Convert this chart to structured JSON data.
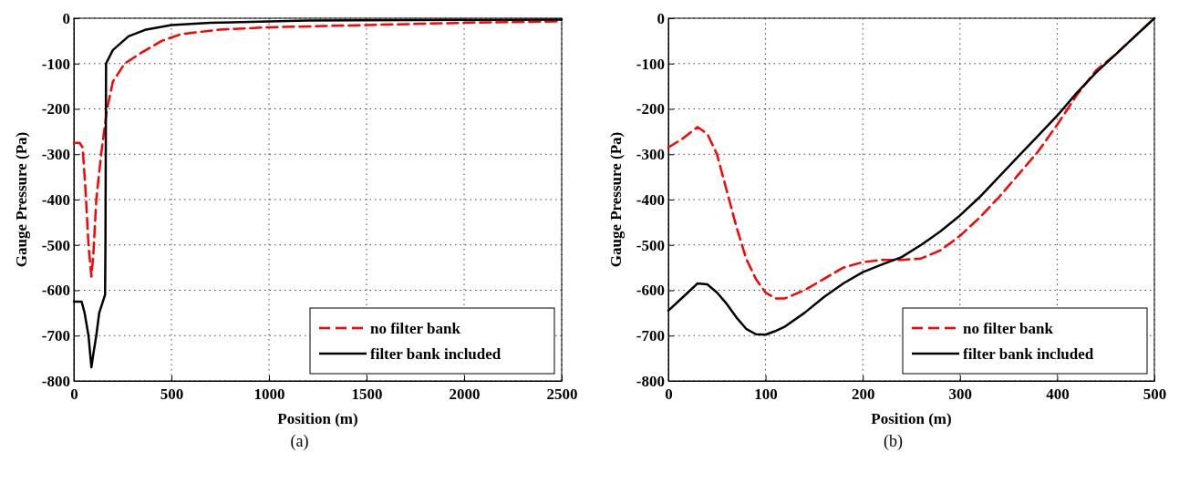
{
  "chart_data": [
    {
      "type": "line",
      "xlabel": "Position (m)",
      "ylabel": "Gauge Pressure (Pa)",
      "xlim": [
        0,
        2500
      ],
      "ylim": [
        -800,
        0
      ],
      "xticks": [
        0,
        500,
        1000,
        1500,
        2000,
        2500
      ],
      "yticks": [
        -800,
        -700,
        -600,
        -500,
        -400,
        -300,
        -200,
        -100,
        0
      ],
      "grid": true,
      "legend": "bottom right",
      "annotations": [
        "(a)"
      ],
      "series": [
        {
          "name": "no filter bank",
          "color": "#ff0000",
          "line_style": "dashed",
          "x": [
            0,
            30,
            45,
            60,
            75,
            90,
            100,
            115,
            140,
            170,
            200,
            260,
            350,
            450,
            550,
            750,
            1000,
            1500,
            2000,
            2500
          ],
          "values": [
            -275,
            -275,
            -285,
            -380,
            -500,
            -570,
            -520,
            -400,
            -300,
            -200,
            -140,
            -100,
            -75,
            -50,
            -35,
            -25,
            -20,
            -15,
            -10,
            -7
          ]
        },
        {
          "name": "filter bank included",
          "color": "#000000",
          "line_style": "solid",
          "x": [
            0,
            40,
            55,
            75,
            90,
            100,
            115,
            130,
            160,
            162,
            165,
            200,
            280,
            370,
            500,
            700,
            1200,
            2500
          ],
          "values": [
            -625,
            -625,
            -650,
            -700,
            -770,
            -740,
            -700,
            -650,
            -610,
            -490,
            -100,
            -70,
            -40,
            -25,
            -15,
            -10,
            -5,
            -3
          ]
        }
      ]
    },
    {
      "type": "line",
      "xlabel": "Position (m)",
      "ylabel": "Gauge Pressure (Pa)",
      "xlim": [
        0,
        500
      ],
      "ylim": [
        -800,
        0
      ],
      "xticks": [
        0,
        100,
        200,
        300,
        400,
        500
      ],
      "yticks": [
        -800,
        -700,
        -600,
        -500,
        -400,
        -300,
        -200,
        -100,
        0
      ],
      "grid": true,
      "legend": "bottom right",
      "annotations": [
        "(b)"
      ],
      "series": [
        {
          "name": "no filter bank",
          "color": "#ff0000",
          "line_style": "dashed",
          "x": [
            0,
            15,
            30,
            40,
            50,
            60,
            70,
            80,
            90,
            100,
            110,
            120,
            140,
            160,
            180,
            200,
            220,
            240,
            260,
            280,
            300,
            320,
            340,
            360,
            380,
            400,
            420,
            440,
            460,
            480,
            500
          ],
          "values": [
            -285,
            -265,
            -240,
            -255,
            -300,
            -380,
            -460,
            -530,
            -575,
            -605,
            -618,
            -618,
            -600,
            -575,
            -550,
            -538,
            -533,
            -533,
            -530,
            -512,
            -480,
            -440,
            -395,
            -345,
            -295,
            -235,
            -170,
            -115,
            -80,
            -40,
            0
          ]
        },
        {
          "name": "filter bank included",
          "color": "#000000",
          "line_style": "solid",
          "x": [
            0,
            15,
            30,
            40,
            50,
            60,
            70,
            80,
            90,
            100,
            110,
            120,
            140,
            160,
            180,
            200,
            220,
            240,
            260,
            280,
            300,
            320,
            340,
            360,
            380,
            400,
            420,
            440,
            460,
            480,
            500
          ],
          "values": [
            -645,
            -615,
            -585,
            -587,
            -605,
            -630,
            -660,
            -685,
            -697,
            -698,
            -690,
            -680,
            -650,
            -615,
            -585,
            -560,
            -543,
            -527,
            -500,
            -470,
            -435,
            -395,
            -350,
            -305,
            -260,
            -215,
            -165,
            -120,
            -80,
            -40,
            0
          ]
        }
      ]
    }
  ]
}
